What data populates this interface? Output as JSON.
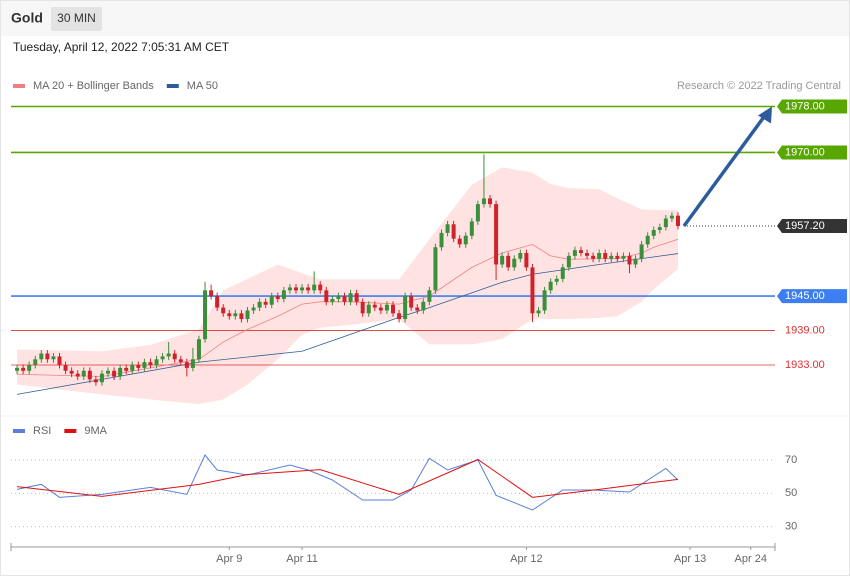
{
  "chart_data": {
    "type": "candlestick",
    "title": "Gold",
    "interval": "30 MIN",
    "subtitle": "Tuesday, April 12, 2022 7:05:31 AM CET",
    "credit": "Research © 2022 Trading Central",
    "up_color": "#3a8f3a",
    "down_color": "#d0222b",
    "xlim": [
      -1,
      125
    ],
    "xticks": [
      {
        "value": 35,
        "label": "Apr 9"
      },
      {
        "value": 47,
        "label": "Apr 11"
      },
      {
        "value": 84,
        "label": "Apr 12"
      },
      {
        "value": 111,
        "label": "Apr 13"
      },
      {
        "value": 121,
        "label": "Apr 24"
      }
    ],
    "ylim": [
      1925,
      1980
    ],
    "candles": [
      [
        1932,
        1933.1,
        1931.4,
        1932.5
      ],
      [
        1932.5,
        1933.1,
        1931.4,
        1932
      ],
      [
        1932,
        1933.6,
        1931.4,
        1933
      ],
      [
        1933,
        1934.6,
        1932.4,
        1934
      ],
      [
        1934,
        1935.6,
        1933.4,
        1935
      ],
      [
        1935,
        1935.6,
        1933.4,
        1934
      ],
      [
        1934,
        1935.1,
        1933.4,
        1934.5
      ],
      [
        1934.5,
        1935.1,
        1932.4,
        1933
      ],
      [
        1933,
        1933.6,
        1931.4,
        1932
      ],
      [
        1932,
        1932.6,
        1930.9,
        1931.5
      ],
      [
        1931.5,
        1932.1,
        1930.4,
        1931
      ],
      [
        1931,
        1932.6,
        1930.4,
        1932
      ],
      [
        1932,
        1932.6,
        1929.9,
        1930.5
      ],
      [
        1930.5,
        1931.1,
        1929.4,
        1930
      ],
      [
        1930,
        1932.1,
        1929.4,
        1931.5
      ],
      [
        1931.5,
        1932.6,
        1930.9,
        1932
      ],
      [
        1932,
        1932.6,
        1930.4,
        1931
      ],
      [
        1931,
        1933.1,
        1930.4,
        1932.5
      ],
      [
        1932.5,
        1933.1,
        1931.4,
        1932
      ],
      [
        1932,
        1933.6,
        1931.4,
        1933
      ],
      [
        1933,
        1933.6,
        1931.9,
        1932.5
      ],
      [
        1932.5,
        1934.1,
        1931.9,
        1933.5
      ],
      [
        1933.5,
        1934.1,
        1932.4,
        1933
      ],
      [
        1933,
        1934.6,
        1932.4,
        1934
      ],
      [
        1934,
        1935.1,
        1933.4,
        1934.5
      ],
      [
        1934.5,
        1937,
        1933.9,
        1935
      ],
      [
        1935,
        1935.6,
        1933.4,
        1934
      ],
      [
        1934,
        1934.6,
        1932.9,
        1933.5
      ],
      [
        1933.5,
        1934.1,
        1931,
        1932.5
      ],
      [
        1932.5,
        1936,
        1931.9,
        1934
      ],
      [
        1934,
        1938.1,
        1933.4,
        1937.5
      ],
      [
        1937.5,
        1947.5,
        1936.9,
        1946
      ],
      [
        1946,
        1947,
        1944.4,
        1945
      ],
      [
        1945,
        1945.6,
        1942.4,
        1943
      ],
      [
        1943,
        1943.6,
        1941.4,
        1942
      ],
      [
        1942,
        1942.6,
        1940.9,
        1941.5
      ],
      [
        1941.5,
        1942.6,
        1940.9,
        1942
      ],
      [
        1942,
        1942.6,
        1940.4,
        1941
      ],
      [
        1941,
        1943.1,
        1940.4,
        1942.5
      ],
      [
        1942.5,
        1943.6,
        1941.9,
        1943
      ],
      [
        1943,
        1944.6,
        1942.4,
        1944
      ],
      [
        1944,
        1944.6,
        1942.9,
        1943.5
      ],
      [
        1943.5,
        1945.6,
        1942.9,
        1945
      ],
      [
        1945,
        1945.6,
        1943.9,
        1944.5
      ],
      [
        1944.5,
        1946.6,
        1943.9,
        1946
      ],
      [
        1946,
        1947.1,
        1945.4,
        1946.5
      ],
      [
        1946.5,
        1947.1,
        1945.4,
        1946
      ],
      [
        1946,
        1947.1,
        1945.4,
        1946.5
      ],
      [
        1946.5,
        1947.1,
        1945.4,
        1946
      ],
      [
        1946,
        1949.3,
        1945.4,
        1947
      ],
      [
        1947,
        1947.6,
        1945.4,
        1946
      ],
      [
        1946,
        1946.6,
        1943.4,
        1944
      ],
      [
        1944,
        1945.1,
        1943.4,
        1944.5
      ],
      [
        1944.5,
        1945.6,
        1943.9,
        1945
      ],
      [
        1945,
        1945.6,
        1943.4,
        1944
      ],
      [
        1944,
        1946.1,
        1943.4,
        1945.5
      ],
      [
        1945.5,
        1946.1,
        1943.4,
        1944
      ],
      [
        1944,
        1944.6,
        1941.4,
        1942
      ],
      [
        1942,
        1944.1,
        1941.4,
        1943.5
      ],
      [
        1943.5,
        1944.1,
        1942.4,
        1943
      ],
      [
        1943,
        1943.6,
        1941.9,
        1942.5
      ],
      [
        1942.5,
        1944.1,
        1941.9,
        1943.5
      ],
      [
        1943.5,
        1944.1,
        1941.4,
        1942
      ],
      [
        1942,
        1942.6,
        1940.4,
        1941
      ],
      [
        1941,
        1945.6,
        1940.4,
        1945
      ],
      [
        1945,
        1945.6,
        1942.4,
        1943
      ],
      [
        1943,
        1943.6,
        1941.9,
        1942.5
      ],
      [
        1942.5,
        1944.6,
        1941.9,
        1944
      ],
      [
        1944,
        1946.6,
        1943.4,
        1946
      ],
      [
        1946,
        1954.1,
        1945.4,
        1953.5
      ],
      [
        1953.5,
        1956.6,
        1952.9,
        1956
      ],
      [
        1956,
        1958.1,
        1955.4,
        1957.5
      ],
      [
        1957.5,
        1958.1,
        1954.4,
        1955
      ],
      [
        1955,
        1955.6,
        1953.4,
        1954
      ],
      [
        1954,
        1956.1,
        1953.4,
        1955.5
      ],
      [
        1955.5,
        1958.6,
        1954.9,
        1958
      ],
      [
        1958,
        1961.6,
        1957.4,
        1961
      ],
      [
        1961,
        1969.7,
        1960.4,
        1962
      ],
      [
        1962,
        1962.6,
        1960.4,
        1961
      ],
      [
        1961,
        1961.6,
        1947.8,
        1950.5
      ],
      [
        1950.5,
        1952.6,
        1949.9,
        1952
      ],
      [
        1952,
        1952.6,
        1949.4,
        1950
      ],
      [
        1950,
        1952.1,
        1949.4,
        1951.5
      ],
      [
        1951.5,
        1953.1,
        1950.9,
        1952.5
      ],
      [
        1952.5,
        1953.1,
        1949.4,
        1950
      ],
      [
        1950,
        1950.6,
        1940.5,
        1942
      ],
      [
        1942,
        1943.1,
        1941.4,
        1942.5
      ],
      [
        1942.5,
        1946.6,
        1941.9,
        1946
      ],
      [
        1946,
        1948.1,
        1945.4,
        1947.5
      ],
      [
        1947.5,
        1948.6,
        1946.9,
        1948
      ],
      [
        1948,
        1950.6,
        1947.4,
        1950
      ],
      [
        1950,
        1952.6,
        1949.4,
        1952
      ],
      [
        1952,
        1953.6,
        1951.4,
        1953
      ],
      [
        1953,
        1953.6,
        1951.9,
        1952.5
      ],
      [
        1952.5,
        1953.1,
        1951.4,
        1952
      ],
      [
        1952,
        1952.6,
        1950.9,
        1951.5
      ],
      [
        1951.5,
        1953.1,
        1950.9,
        1952.5
      ],
      [
        1952.5,
        1953.1,
        1950.9,
        1951.5
      ],
      [
        1951.5,
        1952.6,
        1950.9,
        1952
      ],
      [
        1952,
        1952.6,
        1950.9,
        1951.5
      ],
      [
        1951.5,
        1952.6,
        1950.9,
        1952
      ],
      [
        1952,
        1952.6,
        1949,
        1950.5
      ],
      [
        1950.5,
        1952.1,
        1949.9,
        1951.5
      ],
      [
        1951.5,
        1954.6,
        1950.9,
        1954
      ],
      [
        1954,
        1956.1,
        1953.4,
        1955.5
      ],
      [
        1955.5,
        1957.1,
        1954.9,
        1956.5
      ],
      [
        1956.5,
        1957.6,
        1955.9,
        1957
      ],
      [
        1957,
        1959.1,
        1956.4,
        1958.5
      ],
      [
        1958.5,
        1959.6,
        1957.9,
        1959
      ],
      [
        1959,
        1959.6,
        1956.6,
        1957.2
      ]
    ],
    "bands": {
      "name": "MA 20 + Bollinger Bands",
      "color": "#f08080",
      "fill": "#ffe3e3",
      "x": [
        0,
        14,
        22,
        30,
        34,
        38,
        43,
        47,
        50,
        55,
        63,
        68,
        75,
        80,
        85,
        88,
        91,
        96,
        99,
        103,
        105,
        109
      ],
      "values": [
        1931.4,
        1931,
        1932.5,
        1934,
        1937,
        1939.2,
        1941.5,
        1943.6,
        1944,
        1944,
        1943.6,
        1945,
        1950,
        1952.5,
        1954,
        1952,
        1951.4,
        1951.5,
        1951.5,
        1952.5,
        1953.5,
        1954.9
      ],
      "upper": [
        1935.7,
        1935.4,
        1936.5,
        1939.2,
        1946,
        1948,
        1950.5,
        1949,
        1947.9,
        1947.9,
        1947.9,
        1954.9,
        1964.4,
        1967.4,
        1966.5,
        1964.5,
        1963.8,
        1963.6,
        1962,
        1960.1,
        1960,
        1960
      ],
      "lower": [
        1929.6,
        1927.9,
        1927,
        1926.2,
        1927,
        1929.6,
        1934,
        1938.3,
        1939.5,
        1940,
        1941,
        1936.6,
        1936.6,
        1937.5,
        1941,
        1941,
        1941,
        1941.2,
        1941.5,
        1944,
        1946.2,
        1949.7
      ]
    },
    "ma50": {
      "name": "MA 50",
      "color": "#2e5c9a",
      "x": [
        0,
        14,
        30,
        47,
        63,
        68,
        80,
        85,
        96,
        109
      ],
      "values": [
        1927.9,
        1930.5,
        1933.5,
        1935.4,
        1941.3,
        1943,
        1947.4,
        1948.8,
        1950.5,
        1952.4
      ]
    },
    "levels": [
      {
        "value": 1978,
        "label": "1978.00",
        "color": "#58a700",
        "boxed": true
      },
      {
        "value": 1970,
        "label": "1970.00",
        "color": "#58a700",
        "boxed": true
      },
      {
        "value": 1945,
        "label": "1945.00",
        "color": "#3d7ff0",
        "boxed": true
      },
      {
        "value": 1939,
        "label": "1939.00",
        "color": "#e0302f",
        "boxed": false
      },
      {
        "value": 1933,
        "label": "1933.00",
        "color": "#e0302f",
        "boxed": false
      }
    ],
    "last": {
      "value": 1957.2,
      "label": "1957.20",
      "color": "#333333"
    },
    "rsi": {
      "ylim": [
        22,
        82
      ],
      "yticks": [
        30,
        50,
        70
      ],
      "series": [
        {
          "name": "RSI",
          "color": "#5a7fdc",
          "x": [
            0,
            4,
            7,
            14,
            22,
            28,
            31,
            33,
            38,
            45,
            48,
            52,
            57,
            62,
            65,
            68,
            71,
            76,
            79,
            85,
            90,
            95,
            101,
            107,
            109
          ],
          "values": [
            52.4,
            55.4,
            47.6,
            49.4,
            53.6,
            49.4,
            73,
            64,
            61,
            67,
            64,
            58,
            46,
            46,
            52,
            71,
            64,
            70,
            48.8,
            40,
            52,
            52,
            50.8,
            65,
            58
          ]
        },
        {
          "name": "9MA",
          "color": "#e01010",
          "x": [
            0,
            14,
            30,
            38,
            50,
            63,
            76,
            85,
            96,
            109
          ],
          "values": [
            54,
            48.2,
            55.4,
            61.3,
            64.2,
            49.4,
            70.3,
            47.6,
            52.4,
            58.4
          ]
        }
      ]
    }
  }
}
